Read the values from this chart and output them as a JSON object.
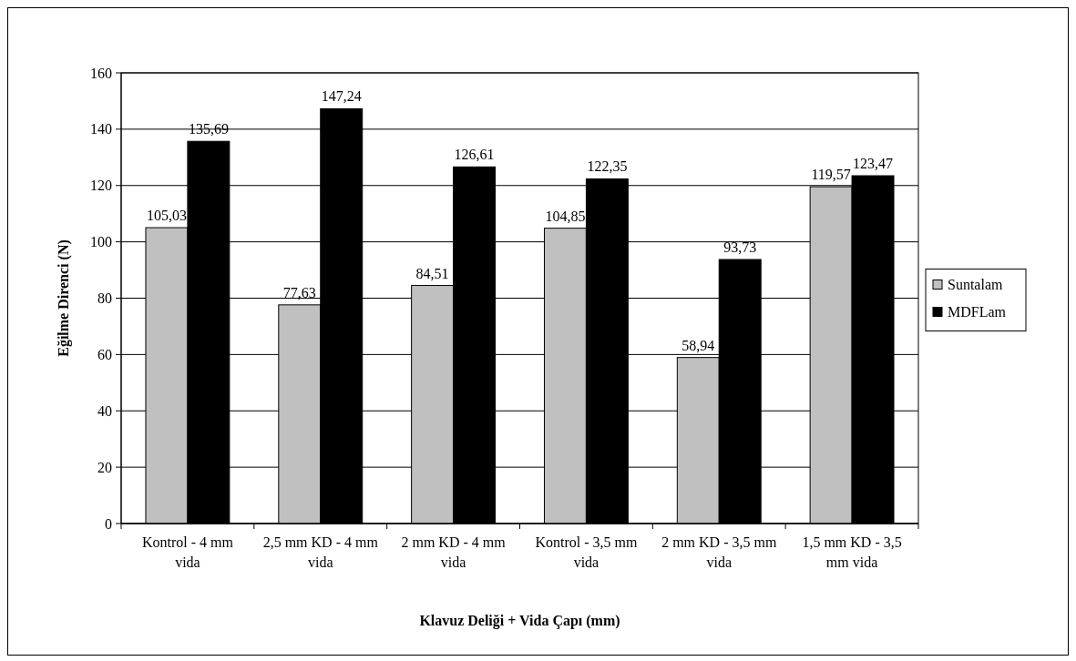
{
  "chart_data": {
    "type": "bar",
    "xlabel": "Klavuz Deliği + Vida Çapı (mm)",
    "ylabel": "Eğilme Direnci (N)",
    "categories": [
      "Kontrol - 4 mm vida",
      "2,5 mm KD - 4 mm vida",
      "2 mm KD - 4 mm vida",
      "Kontrol - 3,5 mm vida",
      "2 mm KD - 3,5 mm vida",
      "1,5 mm KD - 3,5 mm vida"
    ],
    "series": [
      {
        "name": "Suntalam",
        "color": "#c0c0c0",
        "values": [
          105.03,
          77.63,
          84.51,
          104.85,
          58.94,
          119.57
        ],
        "value_labels": [
          "105,03",
          "77,63",
          "84,51",
          "104,85",
          "58,94",
          "119,57"
        ]
      },
      {
        "name": "MDFLam",
        "color": "#000000",
        "values": [
          135.69,
          147.24,
          126.61,
          122.35,
          93.73,
          123.47
        ],
        "value_labels": [
          "135,69",
          "147,24",
          "126,61",
          "122,35",
          "93,73",
          "123,47"
        ]
      }
    ],
    "ylim": [
      0,
      160
    ],
    "yticks": [
      0,
      20,
      40,
      60,
      80,
      100,
      120,
      140,
      160
    ],
    "grid": "y",
    "legend": "right"
  }
}
